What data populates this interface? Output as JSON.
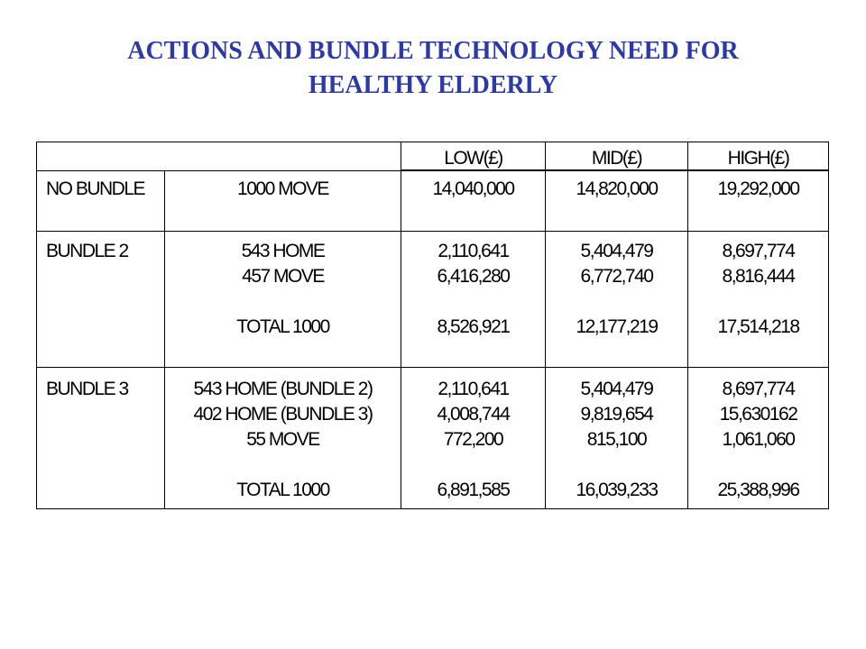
{
  "title": {
    "line1": "ACTIONS AND BUNDLE TECHNOLOGY NEED FOR",
    "line2": "HEALTHY ELDERLY"
  },
  "colors": {
    "title": "#2f3a9e"
  },
  "table": {
    "headers": [
      "",
      "",
      "LOW(£)",
      "MID(£)",
      "HIGH(£)"
    ],
    "rows": [
      {
        "label": "NO BUNDLE",
        "items": [
          "1000 MOVE"
        ],
        "low": [
          "14,040,000"
        ],
        "mid": [
          "14,820,000"
        ],
        "high": [
          "19,292,000"
        ]
      },
      {
        "label": "BUNDLE 2",
        "items": [
          "543 HOME",
          "457 MOVE",
          "",
          "TOTAL 1000"
        ],
        "low": [
          "2,110,641",
          "6,416,280",
          "",
          "8,526,921"
        ],
        "mid": [
          "5,404,479",
          "6,772,740",
          "",
          "12,177,219"
        ],
        "high": [
          "8,697,774",
          "8,816,444",
          "",
          "17,514,218"
        ]
      },
      {
        "label": "BUNDLE 3",
        "items": [
          "543 HOME (BUNDLE 2)",
          "402 HOME (BUNDLE 3)",
          "55 MOVE",
          "",
          "TOTAL 1000"
        ],
        "low": [
          "2,110,641",
          "4,008,744",
          "772,200",
          "",
          "6,891,585"
        ],
        "mid": [
          "5,404,479",
          "9,819,654",
          "815,100",
          "",
          "16,039,233"
        ],
        "high": [
          "8,697,774",
          "15,630162",
          "1,061,060",
          "",
          "25,388,996"
        ]
      }
    ]
  }
}
